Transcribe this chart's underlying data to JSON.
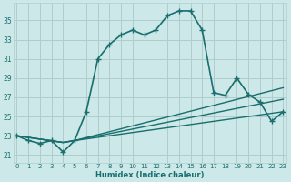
{
  "xlabel": "Humidex (Indice chaleur)",
  "background_color": "#cce8e8",
  "grid_color": "#b0cccc",
  "line_color": "#1a6e6e",
  "x_ticks": [
    0,
    1,
    2,
    3,
    4,
    5,
    6,
    7,
    8,
    9,
    10,
    11,
    12,
    13,
    14,
    15,
    16,
    17,
    18,
    19,
    20,
    21,
    22,
    23
  ],
  "y_ticks": [
    21,
    23,
    25,
    27,
    29,
    31,
    33,
    35
  ],
  "xlim": [
    -0.3,
    23.3
  ],
  "ylim": [
    20.2,
    36.8
  ],
  "lines": [
    {
      "x": [
        0,
        1,
        2,
        3,
        4,
        5,
        6,
        7,
        8,
        9,
        10,
        11,
        12,
        13,
        14,
        15,
        16,
        17,
        18,
        19,
        20,
        21,
        22,
        23
      ],
      "y": [
        23.0,
        22.5,
        22.2,
        22.5,
        21.3,
        22.5,
        25.5,
        31.0,
        32.5,
        33.5,
        34.0,
        33.5,
        34.0,
        35.5,
        36.0,
        36.0,
        34.0,
        27.5,
        27.2,
        29.0,
        27.3,
        26.5,
        24.5,
        25.5
      ],
      "marker": "+",
      "markersize": 4,
      "linewidth": 1.2,
      "linestyle": "-"
    },
    {
      "x": [
        0,
        4,
        5,
        23
      ],
      "y": [
        23.0,
        22.3,
        22.5,
        28.0
      ],
      "marker": null,
      "markersize": 0,
      "linewidth": 1.0,
      "linestyle": "-"
    },
    {
      "x": [
        0,
        4,
        5,
        23
      ],
      "y": [
        23.0,
        22.3,
        22.5,
        26.8
      ],
      "marker": null,
      "markersize": 0,
      "linewidth": 1.0,
      "linestyle": "-"
    },
    {
      "x": [
        0,
        4,
        5,
        23
      ],
      "y": [
        23.0,
        22.3,
        22.5,
        25.5
      ],
      "marker": null,
      "markersize": 0,
      "linewidth": 1.0,
      "linestyle": "-"
    }
  ]
}
